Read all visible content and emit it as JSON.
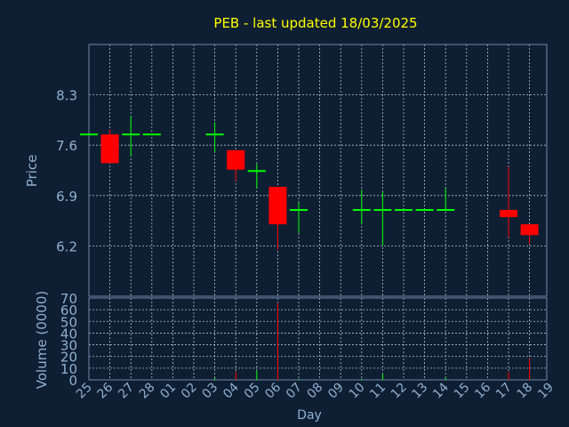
{
  "chart_data": {
    "type": "candlestick",
    "title": "PEB - last updated 18/03/2025",
    "xlabel": "Day",
    "price_axis": {
      "label": "Price",
      "ticks": [
        8.3,
        7.6,
        6.9,
        6.2
      ],
      "range": [
        5.5,
        9.0
      ]
    },
    "volume_axis": {
      "label": "Volume (0000)",
      "ticks": [
        0,
        10,
        20,
        30,
        40,
        50,
        60,
        70
      ],
      "range": [
        0,
        70
      ]
    },
    "x_ticks": [
      "25",
      "26",
      "27",
      "28",
      "01",
      "02",
      "03",
      "04",
      "05",
      "06",
      "07",
      "08",
      "09",
      "10",
      "11",
      "12",
      "13",
      "14",
      "15",
      "16",
      "17",
      "18",
      "19"
    ],
    "grid": true,
    "candles": [
      {
        "day": "25",
        "open": 7.75,
        "close": 7.75,
        "high": 7.75,
        "low": 7.75
      },
      {
        "day": "26",
        "open": 7.75,
        "close": 7.35,
        "high": 7.82,
        "low": 7.35
      },
      {
        "day": "27",
        "open": 7.75,
        "close": 7.75,
        "high": 8.0,
        "low": 7.45
      },
      {
        "day": "28",
        "open": 7.75,
        "close": 7.75,
        "high": 7.75,
        "low": 7.75
      },
      {
        "day": "03",
        "open": 7.75,
        "close": 7.75,
        "high": 7.92,
        "low": 7.5
      },
      {
        "day": "04",
        "open": 7.53,
        "close": 7.26,
        "high": 7.53,
        "low": 7.1
      },
      {
        "day": "05",
        "open": 7.24,
        "close": 7.24,
        "high": 7.34,
        "low": 7.0
      },
      {
        "day": "06",
        "open": 7.02,
        "close": 6.5,
        "high": 7.02,
        "low": 6.15
      },
      {
        "day": "07",
        "open": 6.7,
        "close": 6.7,
        "high": 6.8,
        "low": 6.38
      },
      {
        "day": "10",
        "open": 6.7,
        "close": 6.7,
        "high": 6.98,
        "low": 6.5
      },
      {
        "day": "11",
        "open": 6.7,
        "close": 6.7,
        "high": 6.95,
        "low": 6.2
      },
      {
        "day": "12",
        "open": 6.7,
        "close": 6.7,
        "high": 6.7,
        "low": 6.7
      },
      {
        "day": "13",
        "open": 6.7,
        "close": 6.7,
        "high": 6.7,
        "low": 6.7
      },
      {
        "day": "14",
        "open": 6.7,
        "close": 6.7,
        "high": 7.0,
        "low": 6.7
      },
      {
        "day": "17",
        "open": 6.7,
        "close": 6.6,
        "high": 7.3,
        "low": 6.32
      },
      {
        "day": "18",
        "open": 6.5,
        "close": 6.35,
        "high": 6.5,
        "low": 6.22
      }
    ],
    "volumes": [
      {
        "day": "03",
        "value": 1.5
      },
      {
        "day": "04",
        "value": 7
      },
      {
        "day": "05",
        "value": 8
      },
      {
        "day": "06",
        "value": 66
      },
      {
        "day": "07",
        "value": 1
      },
      {
        "day": "10",
        "value": 1
      },
      {
        "day": "11",
        "value": 5
      },
      {
        "day": "14",
        "value": 2
      },
      {
        "day": "17",
        "value": 7
      },
      {
        "day": "18",
        "value": 18
      }
    ],
    "colors": {
      "background": "#0f1f33",
      "up": "#00ff00",
      "down": "#ff0000",
      "title": "#ffff00",
      "axis_text": "#8fb0d0",
      "grid": "#b0c0d0",
      "frame": "#6f87a8"
    }
  }
}
